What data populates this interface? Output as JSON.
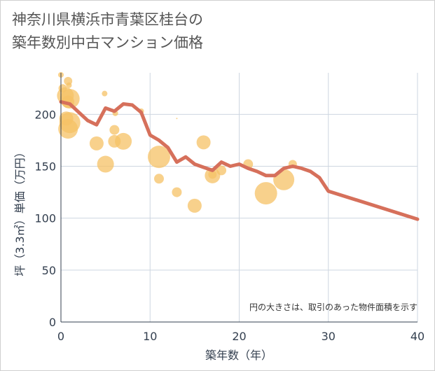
{
  "title_lines": [
    "神奈川県横浜市青葉区桂台の",
    "築年数別中古マンション価格"
  ],
  "chart_data": {
    "type": "scatter+line",
    "xlabel": "築年数（年）",
    "ylabel": "坪（3.3㎡）単価（万円）",
    "xlim": [
      0,
      40
    ],
    "ylim": [
      0,
      240
    ],
    "x_ticks": [
      0,
      10,
      20,
      30,
      40
    ],
    "y_ticks": [
      0,
      50,
      100,
      150,
      200
    ],
    "x_tick_labels": [
      "0",
      "10",
      "20",
      "30",
      "40"
    ],
    "y_tick_labels": [
      "0",
      "50",
      "100",
      "150",
      "200"
    ],
    "grid": true,
    "note": "円の大きさは、取引のあった物件面積を示す",
    "colors": {
      "bubble": "#f5c265",
      "line": "#d6705b",
      "grid": "#cdd6e0"
    },
    "line_series": {
      "x": [
        0,
        1,
        2,
        3,
        4,
        5,
        6,
        7,
        8,
        9,
        10,
        11,
        12,
        13,
        14,
        15,
        16,
        17,
        18,
        19,
        20,
        21,
        22,
        23,
        24,
        25,
        26,
        27,
        28,
        29,
        30,
        40
      ],
      "y": [
        212,
        210,
        202,
        194,
        190,
        206,
        203,
        210,
        209,
        202,
        180,
        175,
        168,
        154,
        159,
        152,
        149,
        146,
        154,
        150,
        152,
        148,
        145,
        141,
        141,
        148,
        150,
        148,
        145,
        139,
        126,
        99
      ]
    },
    "bubbles": [
      {
        "x": 0,
        "y": 238,
        "r": 4
      },
      {
        "x": 0.2,
        "y": 225,
        "r": 6
      },
      {
        "x": 0.5,
        "y": 218,
        "r": 12
      },
      {
        "x": 0.8,
        "y": 212,
        "r": 9
      },
      {
        "x": 0.8,
        "y": 232,
        "r": 6
      },
      {
        "x": 0.9,
        "y": 228,
        "r": 4
      },
      {
        "x": 1,
        "y": 215,
        "r": 14
      },
      {
        "x": 0.6,
        "y": 196,
        "r": 10
      },
      {
        "x": 0.8,
        "y": 186,
        "r": 14
      },
      {
        "x": 1,
        "y": 192,
        "r": 15
      },
      {
        "x": 4,
        "y": 172,
        "r": 10
      },
      {
        "x": 4.9,
        "y": 220,
        "r": 4
      },
      {
        "x": 5,
        "y": 152,
        "r": 12
      },
      {
        "x": 6,
        "y": 185,
        "r": 7
      },
      {
        "x": 6,
        "y": 174,
        "r": 9
      },
      {
        "x": 6.1,
        "y": 201,
        "r": 4
      },
      {
        "x": 7,
        "y": 174,
        "r": 12
      },
      {
        "x": 9,
        "y": 203,
        "r": 4
      },
      {
        "x": 11,
        "y": 159,
        "r": 16
      },
      {
        "x": 11,
        "y": 138,
        "r": 7
      },
      {
        "x": 13,
        "y": 125,
        "r": 7
      },
      {
        "x": 13,
        "y": 196,
        "r": 1
      },
      {
        "x": 15,
        "y": 112,
        "r": 10
      },
      {
        "x": 16,
        "y": 173,
        "r": 10
      },
      {
        "x": 17,
        "y": 141,
        "r": 11
      },
      {
        "x": 17,
        "y": 142,
        "r": 6
      },
      {
        "x": 18,
        "y": 146,
        "r": 7
      },
      {
        "x": 21,
        "y": 152,
        "r": 7
      },
      {
        "x": 23,
        "y": 124,
        "r": 16
      },
      {
        "x": 25,
        "y": 137,
        "r": 15
      },
      {
        "x": 26,
        "y": 152,
        "r": 6
      }
    ]
  }
}
